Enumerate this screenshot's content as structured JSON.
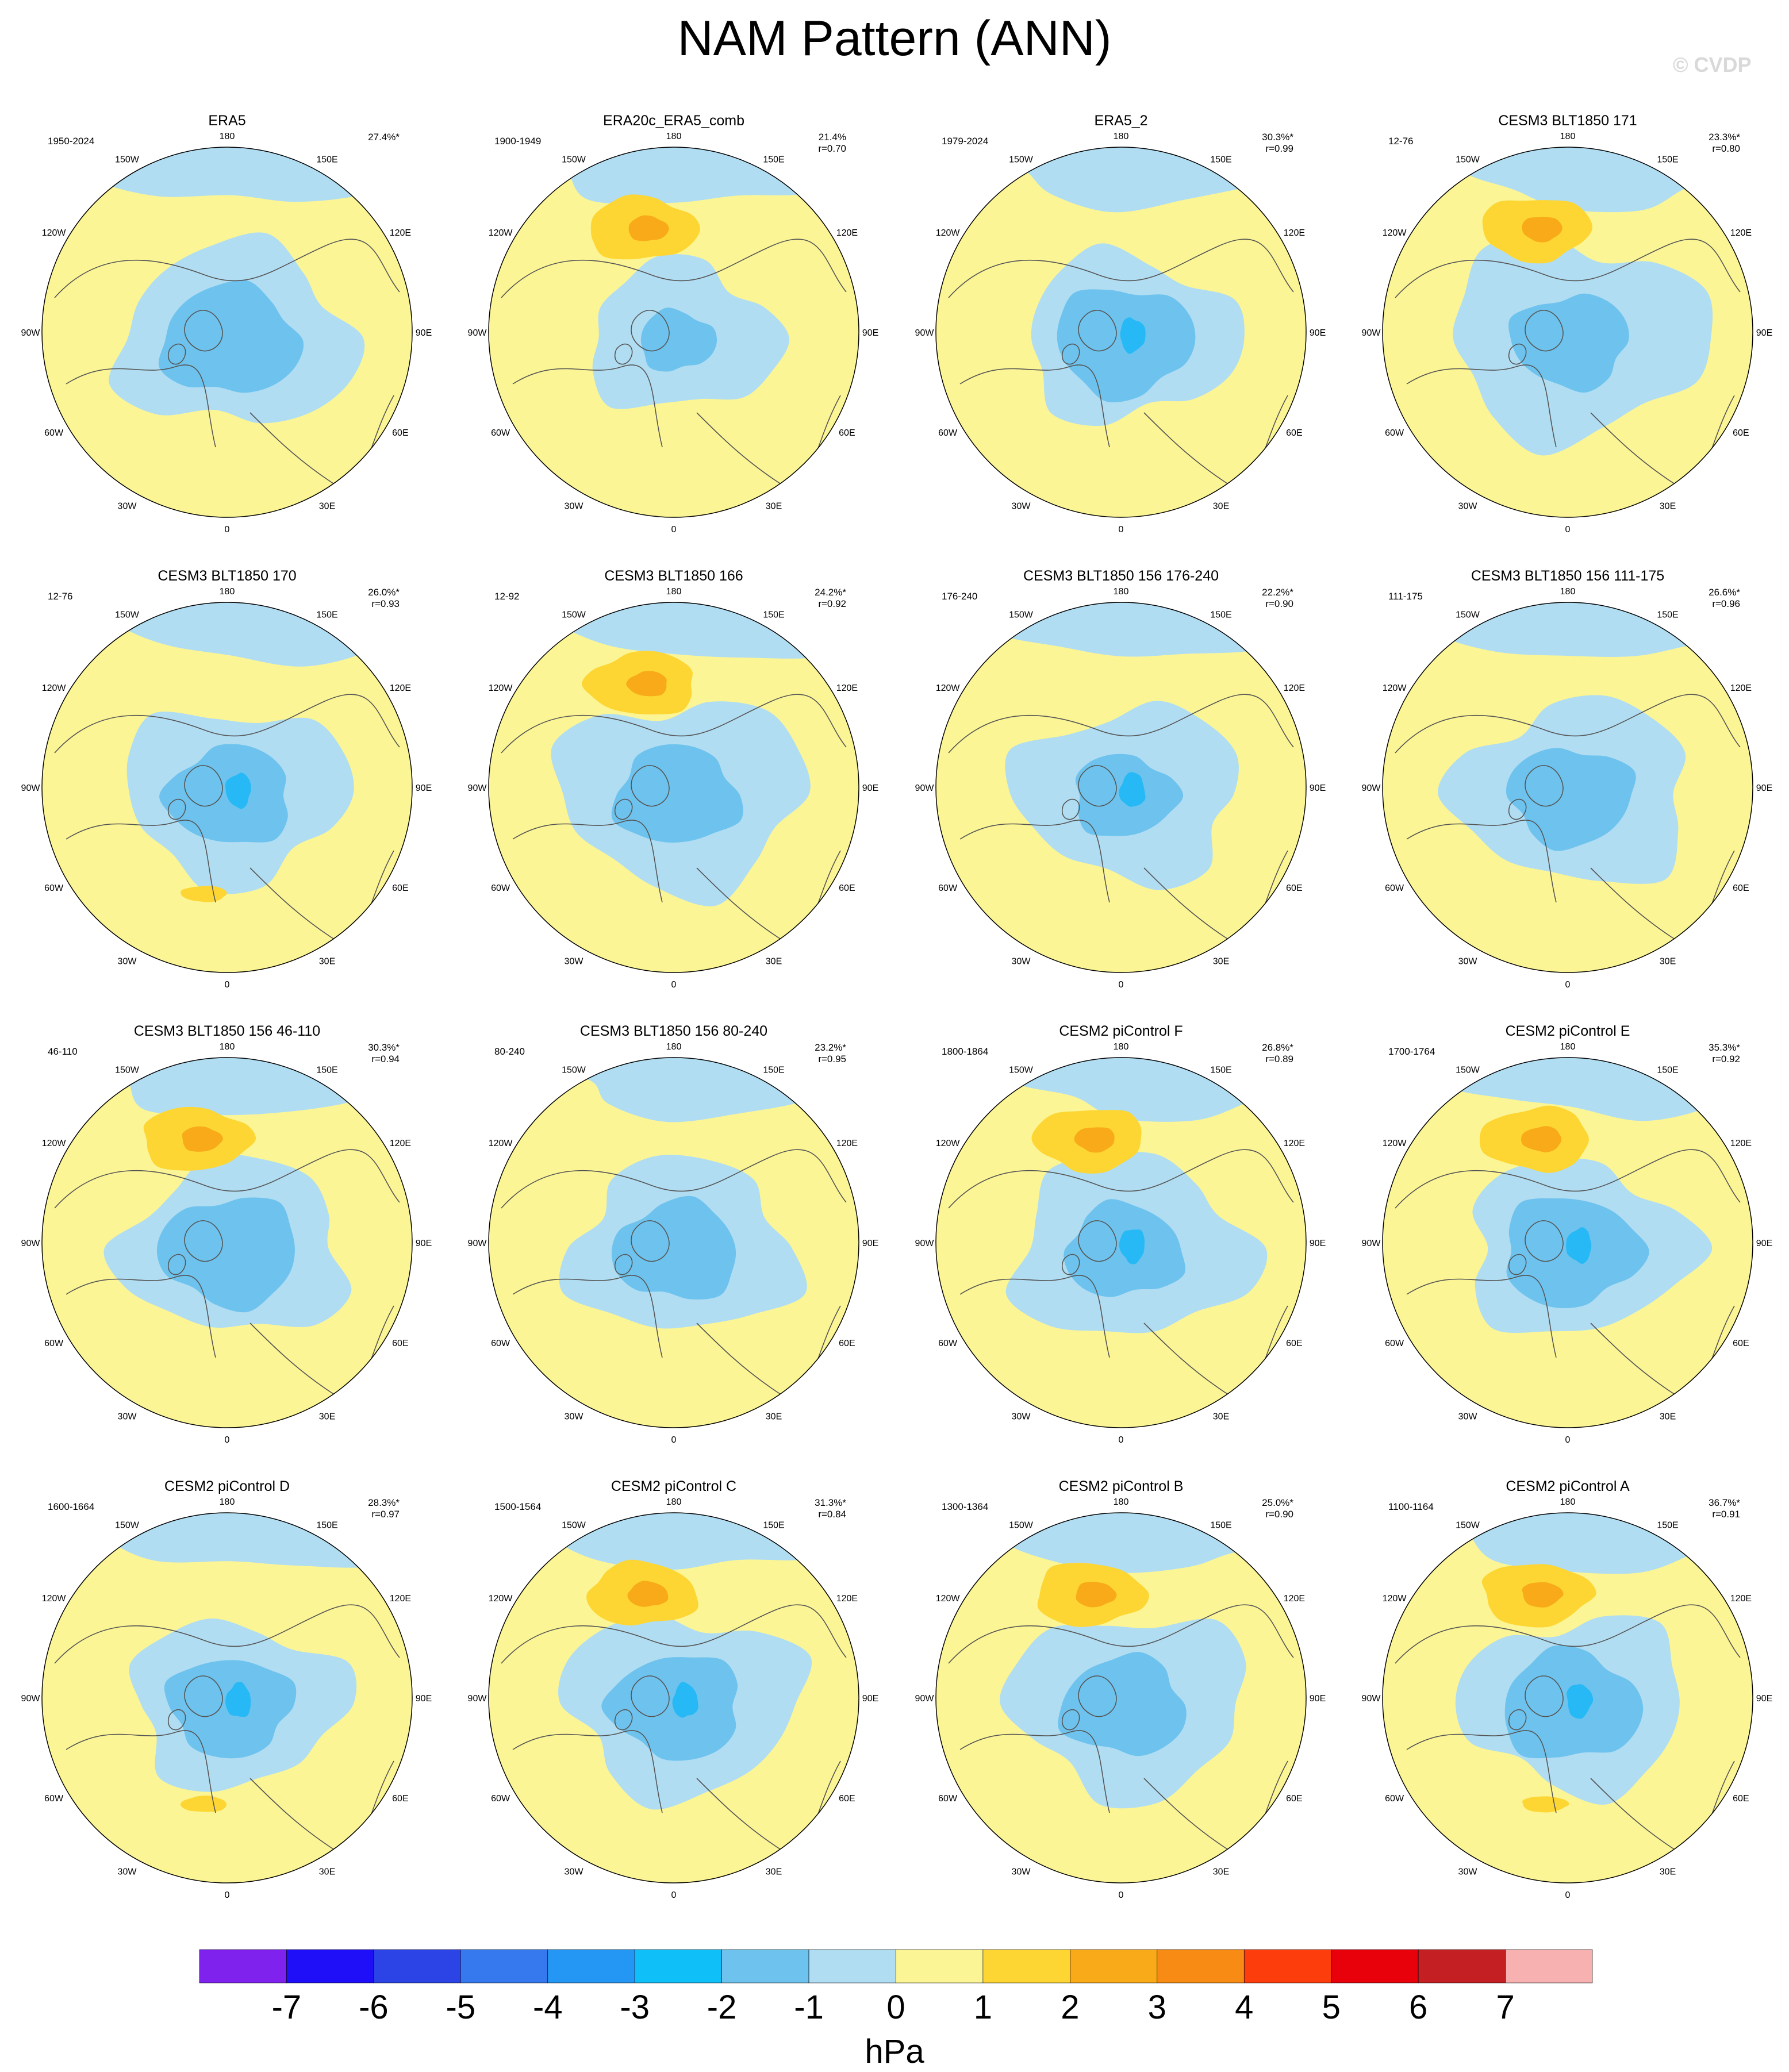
{
  "title": "NAM Pattern (ANN)",
  "watermark": "© CVDP",
  "units": "hPa",
  "lon_labels": [
    "180",
    "150E",
    "120E",
    "90E",
    "60E",
    "30E",
    "0",
    "30W",
    "60W",
    "90W",
    "120W",
    "150W"
  ],
  "colors": {
    "ocean_yellow": "#fbf595",
    "light_blue": "#b1ddf2",
    "mid_blue": "#6ec3ee",
    "deep_blue": "#26b9f5",
    "orange_light": "#fdd634",
    "orange": "#f8aa18",
    "coast": "#555555"
  },
  "colorbar": {
    "ticks": [
      "-7",
      "-6",
      "-5",
      "-4",
      "-3",
      "-2",
      "-1",
      "0",
      "1",
      "2",
      "3",
      "4",
      "5",
      "6",
      "7"
    ],
    "colors": [
      "#7f22ee",
      "#1e0ff8",
      "#2c44e6",
      "#3678ee",
      "#2496f4",
      "#0ec0f7",
      "#6ec3ee",
      "#b1ddf2",
      "#fbf595",
      "#fdd634",
      "#f8aa18",
      "#f88b14",
      "#fd3d0c",
      "#e8000b",
      "#c41f22",
      "#f8b1b1"
    ]
  },
  "panels": [
    {
      "name": "ERA5",
      "period": "1950-2024",
      "pct": "27.4%*",
      "r": ""
    },
    {
      "name": "ERA20c_ERA5_comb",
      "period": "1900-1949",
      "pct": "21.4%",
      "r": "r=0.70"
    },
    {
      "name": "ERA5_2",
      "period": "1979-2024",
      "pct": "30.3%*",
      "r": "r=0.99"
    },
    {
      "name": "CESM3 BLT1850 171",
      "period": "12-76",
      "pct": "23.3%*",
      "r": "r=0.80"
    },
    {
      "name": "CESM3 BLT1850 170",
      "period": "12-76",
      "pct": "26.0%*",
      "r": "r=0.93"
    },
    {
      "name": "CESM3 BLT1850 166",
      "period": "12-92",
      "pct": "24.2%*",
      "r": "r=0.92"
    },
    {
      "name": "CESM3 BLT1850 156 176-240",
      "period": "176-240",
      "pct": "22.2%*",
      "r": "r=0.90"
    },
    {
      "name": "CESM3 BLT1850 156 111-175",
      "period": "111-175",
      "pct": "26.6%*",
      "r": "r=0.96"
    },
    {
      "name": "CESM3 BLT1850 156 46-110",
      "period": "46-110",
      "pct": "30.3%*",
      "r": "r=0.94"
    },
    {
      "name": "CESM3 BLT1850 156 80-240",
      "period": "80-240",
      "pct": "23.2%*",
      "r": "r=0.95"
    },
    {
      "name": "CESM2 piControl F",
      "period": "1800-1864",
      "pct": "26.8%*",
      "r": "r=0.89"
    },
    {
      "name": "CESM2 piControl E",
      "period": "1700-1764",
      "pct": "35.3%*",
      "r": "r=0.92"
    },
    {
      "name": "CESM2 piControl D",
      "period": "1600-1664",
      "pct": "28.3%*",
      "r": "r=0.97"
    },
    {
      "name": "CESM2 piControl C",
      "period": "1500-1564",
      "pct": "31.3%*",
      "r": "r=0.84"
    },
    {
      "name": "CESM2 piControl B",
      "period": "1300-1364",
      "pct": "25.0%*",
      "r": "r=0.90"
    },
    {
      "name": "CESM2 piControl A",
      "period": "1100-1164",
      "pct": "36.7%*",
      "r": "r=0.91"
    }
  ]
}
